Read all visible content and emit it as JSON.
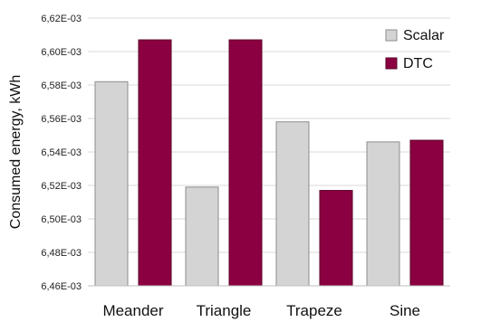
{
  "chart_data": {
    "type": "bar",
    "title": "",
    "xlabel": "",
    "ylabel": "Consumed energy, kWh",
    "categories": [
      "Meander",
      "Triangle",
      "Trapeze",
      "Sine"
    ],
    "series": [
      {
        "name": "Scalar",
        "color": "#d4d4d4",
        "values": [
          0.006582,
          0.006519,
          0.006558,
          0.006546
        ]
      },
      {
        "name": "DTC",
        "color": "#8b0040",
        "values": [
          0.006607,
          0.006607,
          0.006517,
          0.006547
        ]
      }
    ],
    "ylim": [
      0.00646,
      0.00662
    ],
    "yticks": [
      0.00646,
      0.00648,
      0.0065,
      0.00652,
      0.00654,
      0.00656,
      0.00658,
      0.0066,
      0.00662
    ],
    "ytick_labels": [
      "6,46E-03",
      "6,48E-03",
      "6,50E-03",
      "6,52E-03",
      "6,54E-03",
      "6,56E-03",
      "6,58E-03",
      "6,60E-03",
      "6,62E-03"
    ],
    "grid": true,
    "legend_position": "top-right"
  }
}
